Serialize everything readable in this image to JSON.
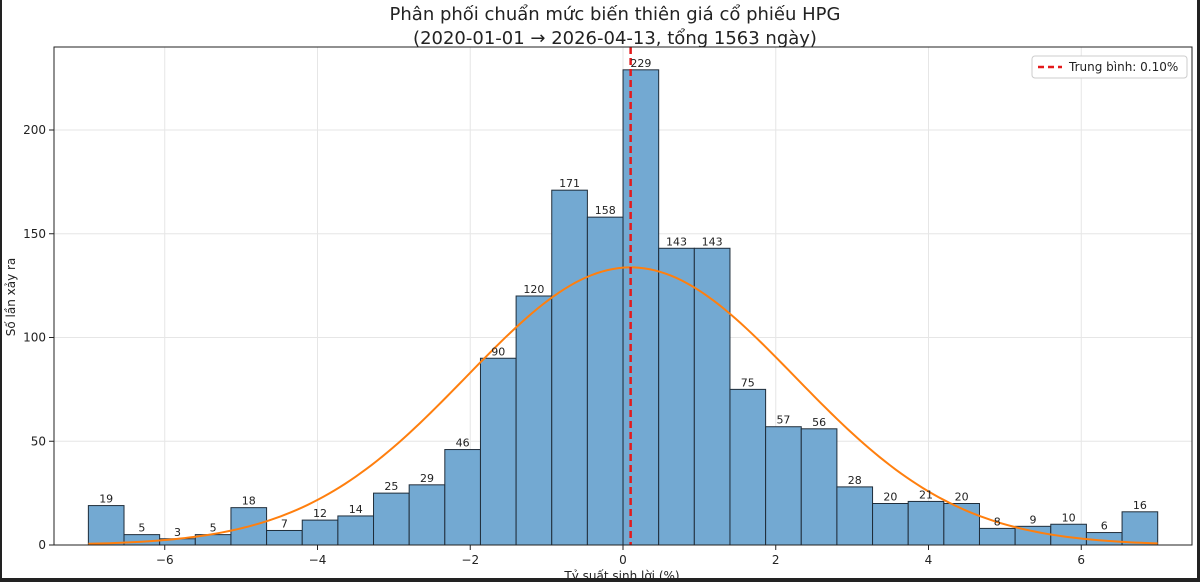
{
  "chart_data": {
    "type": "bar",
    "title": "Phân phối chuẩn mức biến thiên giá cổ phiếu HPG",
    "subtitle": "(2020-01-01 → 2026-04-13, tổng 1563 ngày)",
    "xlabel": "Tỷ suất sinh lời (%)",
    "ylabel": "Số lần xảy ra",
    "xlim": [
      -7.45,
      7.45
    ],
    "ylim": [
      0,
      240
    ],
    "grid": true,
    "legend_position": "top-right",
    "bins": {
      "start": -7.0,
      "width": 0.4667,
      "counts": [
        19,
        5,
        3,
        5,
        18,
        7,
        12,
        14,
        25,
        29,
        46,
        90,
        120,
        171,
        158,
        229,
        143,
        143,
        75,
        57,
        56,
        28,
        20,
        21,
        20,
        8,
        9,
        10,
        6,
        16
      ],
      "data_labels": [
        "19",
        "5",
        "3",
        "5",
        "18",
        "7",
        "12",
        "14",
        "25",
        "29",
        "46",
        "90",
        "120",
        "171",
        "158",
        "229",
        "143",
        "143",
        "75",
        "57",
        "56",
        "28",
        "20",
        "21",
        "20",
        "8",
        "9",
        "10",
        "6",
        "16"
      ]
    },
    "x_ticks": [
      -6,
      -4,
      -2,
      0,
      2,
      4,
      6
    ],
    "x_tick_labels": [
      "−6",
      "−4",
      "−2",
      "0",
      "2",
      "4",
      "6"
    ],
    "y_ticks": [
      0,
      50,
      100,
      150,
      200
    ],
    "y_tick_labels": [
      "0",
      "50",
      "100",
      "150",
      "200"
    ],
    "normal_curve": {
      "mean": 0.1,
      "std": 2.15,
      "peak": 133.8,
      "x_range": [
        -7.0,
        7.0
      ],
      "color": "#ff7f0e"
    },
    "mean_line": {
      "x": 0.1,
      "label": "Trung bình: 0.10%",
      "color": "#e31a1c",
      "style": "dashed"
    },
    "colors": {
      "bar_fill": "#73a9d2",
      "bar_edge": "#1f2d3a",
      "grid": "#e6e6e6"
    }
  }
}
